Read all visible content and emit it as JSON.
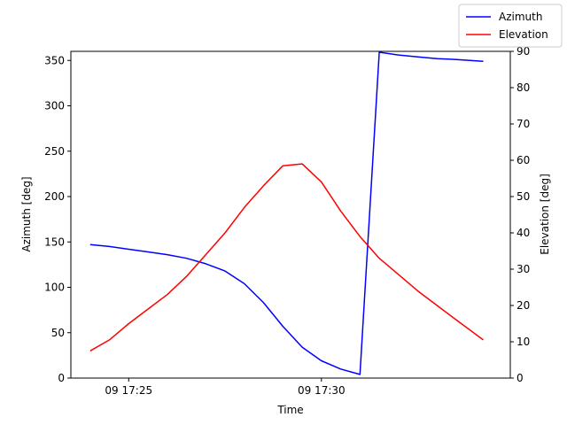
{
  "chart_data": {
    "type": "line",
    "title": "",
    "xlabel": "Time",
    "ylabel_left": "Azimuth [deg]",
    "ylabel_right": "Elevation [deg]",
    "x_ticks": [
      "09 17:25",
      "09 17:30"
    ],
    "x_tick_values": [
      5,
      10
    ],
    "xlim": [
      3.5,
      14.9
    ],
    "ylim_left": [
      0,
      360
    ],
    "ylim_right": [
      0,
      90
    ],
    "yticks_left": [
      "0",
      "50",
      "100",
      "150",
      "200",
      "250",
      "300",
      "350"
    ],
    "yticks_right": [
      "0",
      "10",
      "20",
      "30",
      "40",
      "50",
      "60",
      "70",
      "80",
      "90"
    ],
    "legend_position": "top-right",
    "grid": false,
    "series": [
      {
        "name": "Azimuth",
        "axis": "left",
        "color": "#0000ff",
        "x": [
          4.0,
          4.5,
          5.0,
          5.5,
          6.0,
          6.5,
          7.0,
          7.5,
          8.0,
          8.5,
          9.0,
          9.5,
          10.0,
          10.5,
          11.0,
          11.5,
          12.0,
          12.5,
          13.0,
          13.5,
          14.2
        ],
        "values": [
          147,
          145,
          142,
          139,
          136,
          132,
          126,
          118,
          104,
          83,
          57,
          34,
          19,
          10,
          4,
          359,
          356,
          354,
          352,
          351,
          349
        ]
      },
      {
        "name": "Elevation",
        "axis": "right",
        "color": "#ff0000",
        "x": [
          4.0,
          4.5,
          5.0,
          5.5,
          6.0,
          6.5,
          7.0,
          7.5,
          8.0,
          8.5,
          9.0,
          9.5,
          10.0,
          10.5,
          11.0,
          11.5,
          12.0,
          12.5,
          13.0,
          13.5,
          14.2
        ],
        "values": [
          7.5,
          10.5,
          15.0,
          19.0,
          23.0,
          28.0,
          34.0,
          40.0,
          47.0,
          53.0,
          58.5,
          59.0,
          54.0,
          46.0,
          39.0,
          33.0,
          28.5,
          24.0,
          20.0,
          16.0,
          10.5
        ]
      }
    ]
  }
}
